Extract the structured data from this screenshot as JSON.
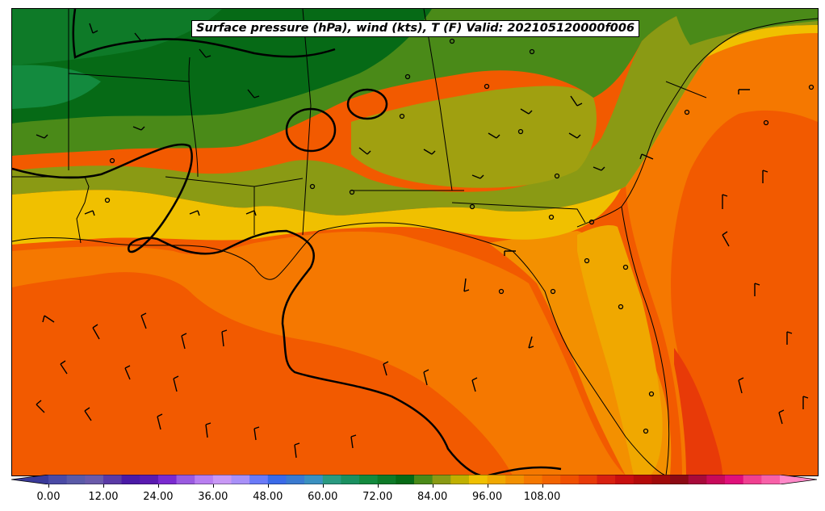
{
  "title": "Surface pressure (hPa), wind (kts), T (F) Valid: 202105120000f006",
  "colorbar": {
    "min": -4,
    "max": 120,
    "step": 4,
    "extend": "both",
    "tick_labels": [
      "0.00",
      "12.00",
      "24.00",
      "36.00",
      "48.00",
      "60.00",
      "72.00",
      "84.00",
      "96.00",
      "108.00"
    ],
    "colors": [
      "#3a3a9a",
      "#4a4aa6",
      "#5a5aa8",
      "#6a5aaa",
      "#5a3aa6",
      "#4a1aa6",
      "#5a1ab0",
      "#7a2ad0",
      "#9a5ae0",
      "#b87ef0",
      "#c898f5",
      "#a890f8",
      "#6a7af8",
      "#3a6ae8",
      "#3a7ad0",
      "#3a90c0",
      "#2a9a80",
      "#1a9060",
      "#138a3e",
      "#0e7a28",
      "#066a16",
      "#4a8a18",
      "#8a9a14",
      "#c0b000",
      "#f0c000",
      "#f0a800",
      "#f39000",
      "#f57800",
      "#f26400",
      "#f05000",
      "#e83a08",
      "#d82010",
      "#c80f0f",
      "#b40a0a",
      "#a00a0a",
      "#8c0a14",
      "#a80a3a",
      "#c80a5a",
      "#e0107a",
      "#f04090",
      "#f860a8",
      "#ff88c8"
    ]
  },
  "map": {
    "variables": [
      "surface pressure (hPa)",
      "wind (kts)",
      "temperature (F)"
    ],
    "region": "Southeastern United States and Gulf of Mexico",
    "features": [
      "state boundaries",
      "coastlines",
      "isobars",
      "wind barbs",
      "filled temperature contours",
      "station circles"
    ]
  }
}
